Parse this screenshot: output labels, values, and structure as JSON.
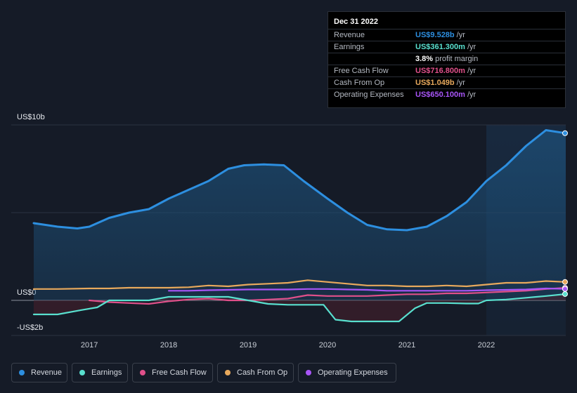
{
  "tooltip": {
    "date": "Dec 31 2022",
    "rows": [
      {
        "label": "Revenue",
        "value": "US$9.528b",
        "unit": "/yr",
        "color": "#2d8fe0"
      },
      {
        "label": "Earnings",
        "value": "US$361.300m",
        "unit": "/yr",
        "color": "#59e0cf"
      },
      {
        "label": "",
        "value": "3.8%",
        "unit": "profit margin",
        "color": "#ffffff"
      },
      {
        "label": "Free Cash Flow",
        "value": "US$716.800m",
        "unit": "/yr",
        "color": "#e0508a"
      },
      {
        "label": "Cash From Op",
        "value": "US$1.049b",
        "unit": "/yr",
        "color": "#e8a95c"
      },
      {
        "label": "Operating Expenses",
        "value": "US$650.100m",
        "unit": "/yr",
        "color": "#a855f7"
      }
    ]
  },
  "legend": [
    {
      "label": "Revenue",
      "color": "#2d8fe0"
    },
    {
      "label": "Earnings",
      "color": "#59e0cf"
    },
    {
      "label": "Free Cash Flow",
      "color": "#e0508a"
    },
    {
      "label": "Cash From Op",
      "color": "#e8a95c"
    },
    {
      "label": "Operating Expenses",
      "color": "#a855f7"
    }
  ],
  "chart_data": {
    "type": "line",
    "y_axis_labels": [
      "US$10b",
      "US$0",
      "-US$2b"
    ],
    "ylim": [
      -2,
      10
    ],
    "xlim": [
      2016.3,
      2023.0
    ],
    "x_ticks": [
      "2017",
      "2018",
      "2019",
      "2020",
      "2021",
      "2022"
    ],
    "x_tick_values": [
      2017,
      2018,
      2019,
      2020,
      2021,
      2022
    ],
    "highlight_from": 2022.0,
    "series": [
      {
        "name": "Revenue",
        "color": "#2d8fe0",
        "fill": true,
        "x": [
          2016.3,
          2016.6,
          2016.85,
          2017.0,
          2017.25,
          2017.5,
          2017.75,
          2018.0,
          2018.25,
          2018.5,
          2018.75,
          2018.95,
          2019.2,
          2019.45,
          2019.7,
          2020.0,
          2020.25,
          2020.5,
          2020.75,
          2021.0,
          2021.25,
          2021.5,
          2021.75,
          2022.0,
          2022.25,
          2022.5,
          2022.75,
          2023.0
        ],
        "y": [
          4.4,
          4.2,
          4.1,
          4.2,
          4.7,
          5.0,
          5.2,
          5.8,
          6.3,
          6.8,
          7.5,
          7.7,
          7.75,
          7.7,
          6.8,
          5.8,
          5.0,
          4.3,
          4.05,
          4.0,
          4.2,
          4.8,
          5.6,
          6.8,
          7.7,
          8.8,
          9.7,
          9.528
        ]
      },
      {
        "name": "Earnings",
        "color": "#59e0cf",
        "x": [
          2016.3,
          2016.6,
          2016.9,
          2017.1,
          2017.25,
          2017.5,
          2017.75,
          2018.0,
          2018.25,
          2018.5,
          2018.75,
          2019.0,
          2019.25,
          2019.5,
          2019.75,
          2019.95,
          2020.1,
          2020.3,
          2020.5,
          2020.75,
          2020.9,
          2021.1,
          2021.25,
          2021.5,
          2021.75,
          2021.9,
          2022.0,
          2022.25,
          2022.5,
          2022.75,
          2023.0
        ],
        "y": [
          -0.8,
          -0.8,
          -0.55,
          -0.4,
          0.0,
          0.0,
          0.0,
          0.2,
          0.2,
          0.2,
          0.2,
          0.0,
          -0.2,
          -0.25,
          -0.25,
          -0.25,
          -1.1,
          -1.2,
          -1.2,
          -1.2,
          -1.2,
          -0.45,
          -0.15,
          -0.15,
          -0.18,
          -0.18,
          0.0,
          0.05,
          0.15,
          0.25,
          0.3613
        ]
      },
      {
        "name": "Free Cash Flow",
        "color": "#e0508a",
        "x": [
          2017.0,
          2017.25,
          2017.5,
          2017.75,
          2018.0,
          2018.25,
          2018.5,
          2018.75,
          2019.0,
          2019.25,
          2019.5,
          2019.75,
          2020.0,
          2020.25,
          2020.5,
          2020.75,
          2021.0,
          2021.25,
          2021.5,
          2021.75,
          2022.0,
          2022.25,
          2022.5,
          2022.75,
          2023.0
        ],
        "y": [
          0.0,
          -0.1,
          -0.15,
          -0.2,
          -0.05,
          0.05,
          0.1,
          0.0,
          0.0,
          0.05,
          0.1,
          0.3,
          0.25,
          0.25,
          0.25,
          0.3,
          0.35,
          0.35,
          0.4,
          0.4,
          0.45,
          0.5,
          0.55,
          0.65,
          0.7168
        ]
      },
      {
        "name": "Cash From Op",
        "color": "#e8a95c",
        "x": [
          2016.3,
          2016.6,
          2017.0,
          2017.25,
          2017.5,
          2017.75,
          2018.0,
          2018.25,
          2018.5,
          2018.75,
          2019.0,
          2019.25,
          2019.5,
          2019.75,
          2020.0,
          2020.25,
          2020.5,
          2020.75,
          2021.0,
          2021.25,
          2021.5,
          2021.75,
          2022.0,
          2022.25,
          2022.5,
          2022.75,
          2023.0
        ],
        "y": [
          0.65,
          0.65,
          0.68,
          0.68,
          0.72,
          0.72,
          0.72,
          0.75,
          0.85,
          0.8,
          0.9,
          0.95,
          1.0,
          1.15,
          1.05,
          0.95,
          0.85,
          0.85,
          0.8,
          0.8,
          0.85,
          0.8,
          0.9,
          1.0,
          1.0,
          1.1,
          1.049
        ]
      },
      {
        "name": "Operating Expenses",
        "color": "#a855f7",
        "x": [
          2018.0,
          2018.25,
          2018.5,
          2018.75,
          2019.0,
          2019.25,
          2019.5,
          2019.75,
          2020.0,
          2020.25,
          2020.5,
          2020.75,
          2021.0,
          2021.25,
          2021.5,
          2021.75,
          2022.0,
          2022.25,
          2022.5,
          2022.75,
          2023.0
        ],
        "y": [
          0.55,
          0.55,
          0.58,
          0.6,
          0.62,
          0.62,
          0.62,
          0.65,
          0.65,
          0.62,
          0.6,
          0.55,
          0.55,
          0.55,
          0.55,
          0.55,
          0.58,
          0.6,
          0.62,
          0.68,
          0.6501
        ]
      }
    ]
  }
}
